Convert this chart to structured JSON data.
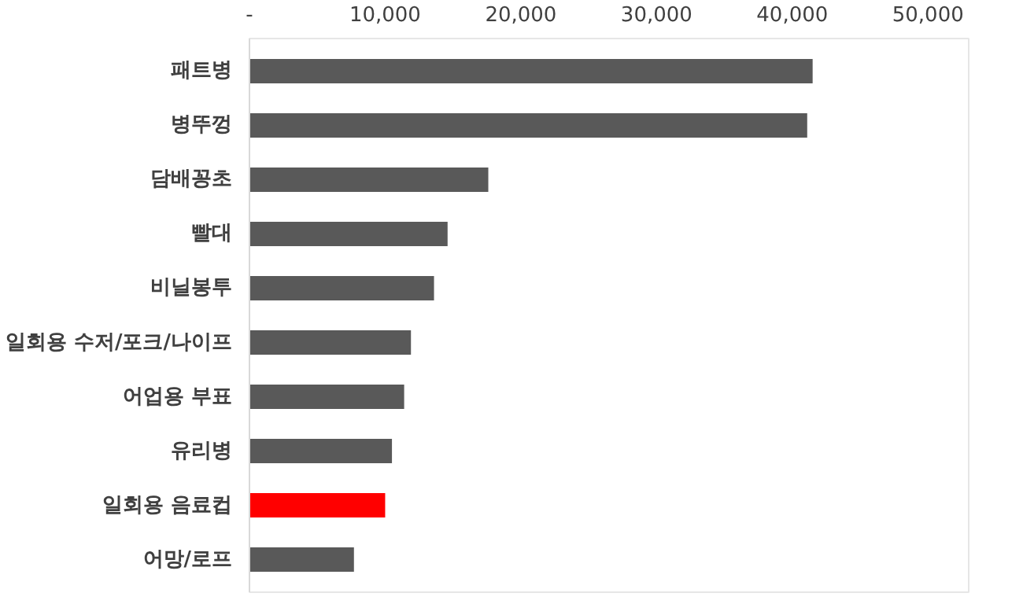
{
  "chart_data": {
    "type": "bar",
    "orientation": "horizontal",
    "categories": [
      "패트병",
      "병뚜껑",
      "담배꽁초",
      "빨대",
      "비닐봉투",
      "일회용 수저/포크/나이프",
      "어업용 부표",
      "유리병",
      "일회용 음료컵",
      "어망/로프"
    ],
    "values": [
      41500,
      41100,
      17600,
      14600,
      13600,
      11900,
      11400,
      10500,
      10000,
      7700
    ],
    "colors": [
      "#595959",
      "#595959",
      "#595959",
      "#595959",
      "#595959",
      "#595959",
      "#595959",
      "#595959",
      "#ff0000",
      "#595959"
    ],
    "xlim": [
      0,
      53000
    ],
    "xticks": [
      {
        "value": 0,
        "label": "-"
      },
      {
        "value": 10000,
        "label": "10,000"
      },
      {
        "value": 20000,
        "label": "20,000"
      },
      {
        "value": 30000,
        "label": "30,000"
      },
      {
        "value": 40000,
        "label": "40,000"
      },
      {
        "value": 50000,
        "label": "50,000"
      }
    ],
    "grid": false
  }
}
